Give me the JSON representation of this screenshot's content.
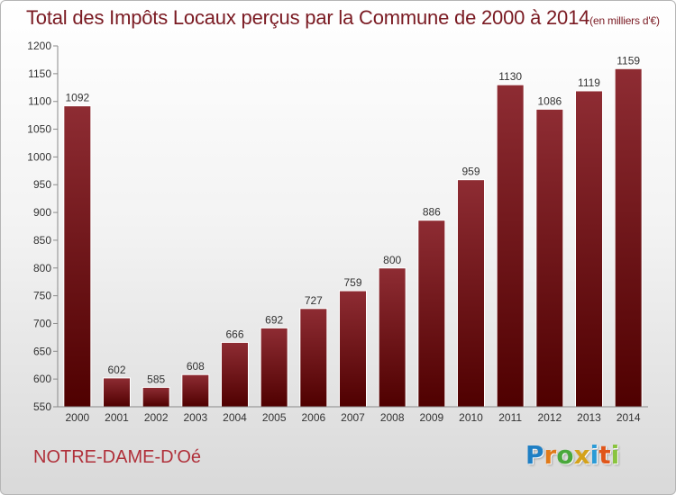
{
  "chart_data": {
    "type": "bar",
    "title": "Total des Impôts Locaux perçus par la Commune de 2000 à 2014",
    "unit_label": "(en milliers d'€)",
    "categories": [
      "2000",
      "2001",
      "2002",
      "2003",
      "2004",
      "2005",
      "2006",
      "2007",
      "2008",
      "2009",
      "2010",
      "2011",
      "2012",
      "2013",
      "2014"
    ],
    "values": [
      1092,
      602,
      585,
      608,
      666,
      692,
      727,
      759,
      800,
      886,
      959,
      1130,
      1086,
      1119,
      1159
    ],
    "value_labels": [
      "1092",
      "602",
      "585",
      "608",
      "666",
      "692",
      "727",
      "759",
      "800",
      "886",
      "959",
      "1130",
      "1086",
      "1119",
      "1159"
    ],
    "ylim": [
      550,
      1200
    ],
    "yticks": [
      550,
      600,
      650,
      700,
      750,
      800,
      850,
      900,
      950,
      1000,
      1050,
      1100,
      1150,
      1200
    ],
    "ytick_labels": [
      "550",
      "600",
      "650",
      "700",
      "750",
      "800",
      "850",
      "900",
      "950",
      "1000",
      "1050",
      "1100",
      "1150",
      "1200"
    ],
    "xlabel": "",
    "ylabel": "",
    "grid": false,
    "bar_color": "#7a1a22"
  },
  "footer": {
    "commune": "NOTRE-DAME-D'Oé",
    "brand": {
      "letters": [
        "P",
        "r",
        "o",
        "x",
        "i",
        "t",
        "i"
      ],
      "colors": [
        "#1f7fc4",
        "#e07a1a",
        "#4aa83c",
        "#d4a21a",
        "#2b9bd6",
        "#e0561a",
        "#8ac43f"
      ]
    }
  }
}
